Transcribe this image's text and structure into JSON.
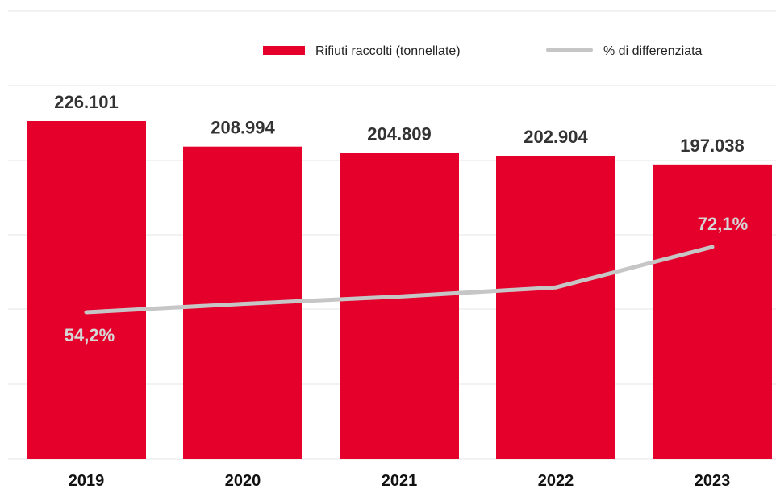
{
  "chart_data": {
    "type": "bar",
    "categories": [
      "2019",
      "2020",
      "2021",
      "2022",
      "2023"
    ],
    "series": [
      {
        "name": "Rifiuti raccolti (tonnellate)",
        "kind": "bar",
        "color": "#e4002b",
        "values": [
          226101,
          208994,
          204809,
          202904,
          197038
        ],
        "value_labels": [
          "226.101",
          "208.994",
          "204.809",
          "202.904",
          "197.038"
        ]
      },
      {
        "name": "% di differenziata",
        "kind": "line",
        "color": "#c6c6c6",
        "values": [
          54.2,
          56.5,
          58.5,
          61.0,
          72.1
        ],
        "value_labels": [
          "54,2%",
          "",
          "",
          "",
          "72,1%"
        ]
      }
    ],
    "bar_ylim": [
      0,
      250000
    ],
    "line_ylim": [
      0,
      105
    ],
    "grid": true,
    "legend": "top-right"
  }
}
